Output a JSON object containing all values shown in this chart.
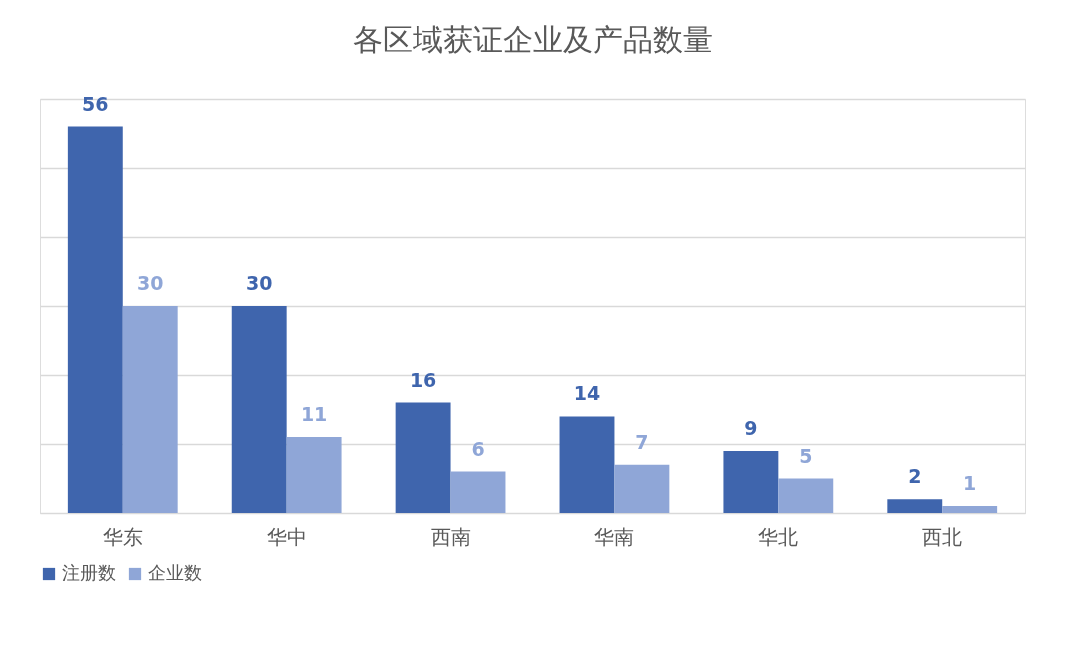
{
  "chart_data": {
    "type": "bar",
    "title": "各区域获证企业及产品数量",
    "categories": [
      "华东",
      "华中",
      "西南",
      "华南",
      "华北",
      "西北"
    ],
    "series": [
      {
        "name": "注册数",
        "color": "#3f65ad",
        "values": [
          56,
          30,
          16,
          14,
          9,
          2
        ]
      },
      {
        "name": "企业数",
        "color": "#8fa6d7",
        "values": [
          30,
          11,
          6,
          7,
          5,
          1
        ]
      }
    ],
    "ylim": [
      0,
      60
    ],
    "yticks": [
      0,
      10,
      20,
      30,
      40,
      50,
      60
    ],
    "grid": "y",
    "tick_labels": "x",
    "legend": "bottom",
    "data_labels": true
  }
}
